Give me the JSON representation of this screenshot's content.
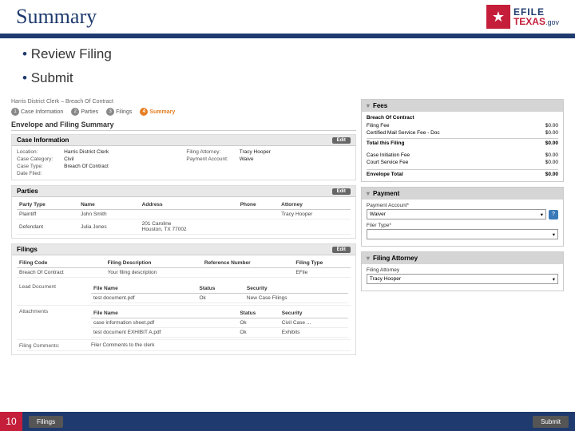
{
  "header": {
    "title": "Summary"
  },
  "logo": {
    "efile": "EFILE",
    "texas": "TEXAS",
    "gov": ".gov"
  },
  "bullets": [
    "Review Filing",
    "Submit"
  ],
  "breadcrumb": "Harris District Clerk   –   Breach Of Contract",
  "steps": [
    {
      "num": "1",
      "label": "Case Information"
    },
    {
      "num": "2",
      "label": "Parties"
    },
    {
      "num": "3",
      "label": "Filings"
    },
    {
      "num": "4",
      "label": "Summary",
      "active": true
    }
  ],
  "summary_title": "Envelope and Filing Summary",
  "edit_label": "Edit",
  "case_info": {
    "title": "Case Information",
    "rows": [
      [
        "Location:",
        "Harris District Clerk",
        "Filing Attorney:",
        "Tracy Hooper"
      ],
      [
        "Case Category:",
        "Civil",
        "Payment Account:",
        "Waive"
      ],
      [
        "Case Type:",
        "Breach Of Contract",
        "",
        ""
      ],
      [
        "Date Filed:",
        "",
        "",
        ""
      ]
    ]
  },
  "parties": {
    "title": "Parties",
    "columns": [
      "Party Type",
      "Name",
      "Address",
      "Phone",
      "Attorney"
    ],
    "rows": [
      [
        "Plaintiff",
        "John Smith",
        "",
        "",
        "Tracy Hooper"
      ],
      [
        "Defendant",
        "Julia Jones",
        "201 Caroline\nHouston, TX 77002",
        "",
        ""
      ]
    ]
  },
  "filings": {
    "title": "Filings",
    "columns": [
      "Filing Code",
      "Filing Description",
      "Reference Number",
      "Filing Type"
    ],
    "row": [
      "Breach Of Contract",
      "Your filing description",
      "",
      "EFile"
    ],
    "docs": {
      "lead_label": "Lead Document",
      "attach_label": "Attachments",
      "comments_label": "Filing Comments:",
      "cols": [
        "File Name",
        "Status",
        "Security"
      ],
      "lead": [
        [
          "test document.pdf",
          "Ok",
          "New Case Filings"
        ]
      ],
      "attachments": [
        [
          "case information sheet.pdf",
          "Ok",
          "Civil Case ..."
        ],
        [
          "test document EXHIBIT A.pdf",
          "Ok",
          "Exhibits"
        ]
      ],
      "comments": "Filer Comments to the clerk"
    }
  },
  "fees": {
    "title": "Fees",
    "item_label": "Breach Of Contract",
    "lines": [
      [
        "Filing Fee",
        "$0.00"
      ],
      [
        "Certified Mail Service Fee - Doc",
        "$0.00"
      ]
    ],
    "sub_total": [
      "Total this Filing",
      "$0.00"
    ],
    "extras": [
      [
        "Case Initiation Fee",
        "$0.00"
      ],
      [
        "Court Service Fee",
        "$0.00"
      ]
    ],
    "env_total": [
      "Envelope Total",
      "$0.00"
    ]
  },
  "payment": {
    "title": "Payment",
    "account_label": "Payment Account*",
    "account_value": "Waiver",
    "filer_label": "Filer Type*",
    "filer_value": ""
  },
  "attorney": {
    "title": "Filing Attorney",
    "label": "Filing Attorney",
    "value": "Tracy Hooper"
  },
  "footer": {
    "page": "10",
    "back": "Filings",
    "submit": "Submit"
  }
}
